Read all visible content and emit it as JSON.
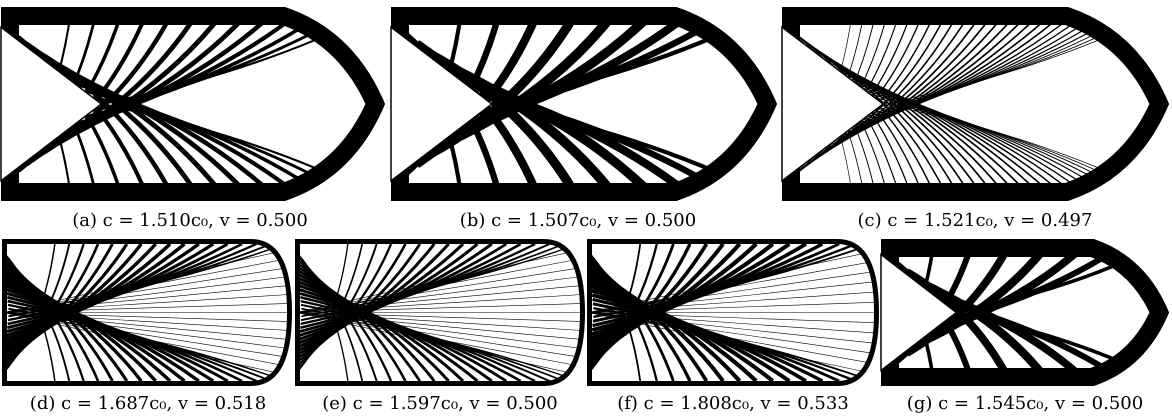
{
  "panels": [
    {
      "caption": "(a) c = 1.510c₀, v = 0.500"
    },
    {
      "caption": "(b) c = 1.507c₀, v = 0.500"
    },
    {
      "caption": "(c) c = 1.521c₀, v = 0.497"
    },
    {
      "caption": "(d) c = 1.687c₀, v = 0.518"
    },
    {
      "caption": "(e) c = 1.597c₀, v = 0.500"
    },
    {
      "caption": "(f) c = 1.808c₀, v = 0.533"
    },
    {
      "caption": "(g) c = 1.545c₀, v = 0.500"
    }
  ]
}
